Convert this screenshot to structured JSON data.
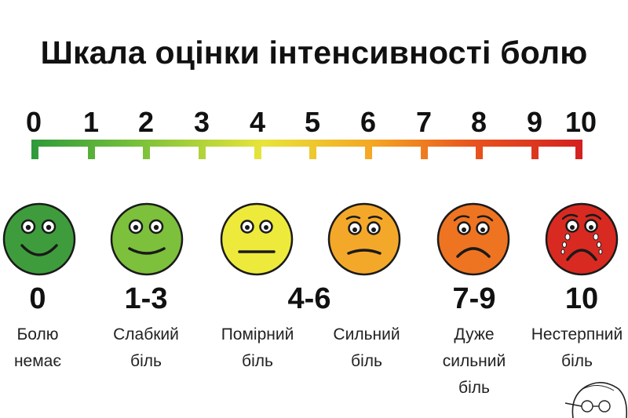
{
  "title": "Шкала оцінки інтенсивності болю",
  "scale": {
    "ticks": [
      "0",
      "1",
      "2",
      "3",
      "4",
      "5",
      "6",
      "7",
      "8",
      "9",
      "10"
    ],
    "gradient_colors": [
      "#2e9a3a",
      "#7cc23a",
      "#e8e43a",
      "#f4a623",
      "#e8541e",
      "#d32020"
    ]
  },
  "faces": [
    {
      "id": "no-pain",
      "color": "#3f9c3c",
      "expression": "big-smile"
    },
    {
      "id": "mild",
      "color": "#7cc03c",
      "expression": "smile"
    },
    {
      "id": "moderate",
      "color": "#eeea3c",
      "expression": "neutral"
    },
    {
      "id": "severe",
      "color": "#f4a82a",
      "expression": "slight-frown"
    },
    {
      "id": "very-severe",
      "color": "#ee7422",
      "expression": "frown"
    },
    {
      "id": "unbearable",
      "color": "#d92a22",
      "expression": "crying"
    }
  ],
  "ranges": [
    "0",
    "1-3",
    "4-6",
    "7-9",
    "10"
  ],
  "descriptions": [
    "Болю\nнемає",
    "Слабкий\nбіль",
    "Помірний\nбіль",
    "Сильний\nбіль",
    "Дуже\nсильний\nбіль",
    "Нестерпний\nбіль"
  ]
}
